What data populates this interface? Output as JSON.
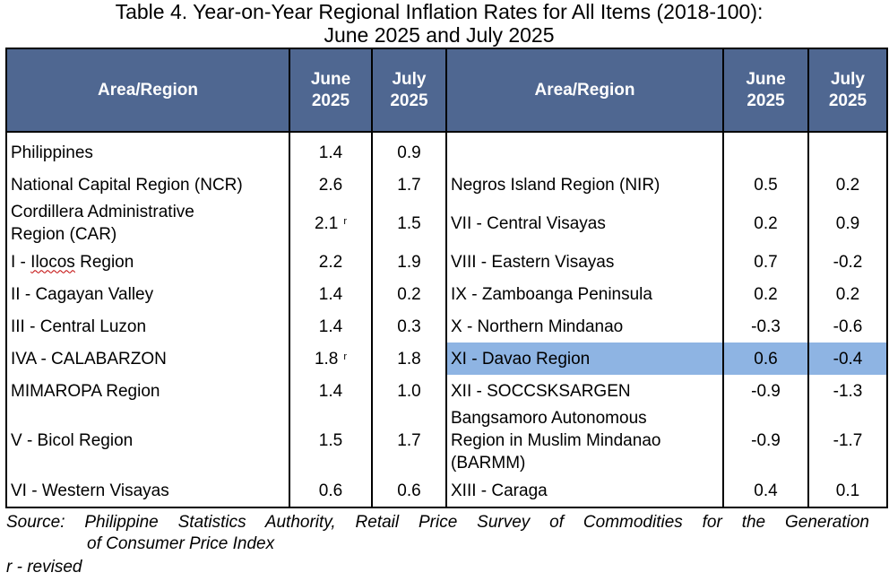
{
  "title": {
    "line1": "Table 4. Year-on-Year Regional Inflation Rates for All Items (2018-100):",
    "line2": "June 2025 and July 2025"
  },
  "headers": {
    "area": "Area/Region",
    "june_l1": "June",
    "june_l2": "2025",
    "july_l1": "July",
    "july_l2": "2025"
  },
  "left_rows": [
    {
      "area": "Philippines",
      "june": "1.4",
      "july": "0.9"
    },
    {
      "area": "National Capital Region (NCR)",
      "june": "2.6",
      "july": "1.7"
    },
    {
      "area_l1": "Cordillera Administrative",
      "area_l2": "Region (CAR)",
      "june": "2.1",
      "june_mark": "r",
      "july": "1.5"
    },
    {
      "area_prefix": "I - ",
      "area_word": "Ilocos",
      "area_suffix": " Region",
      "june": "2.2",
      "july": "1.9"
    },
    {
      "area": "II - Cagayan Valley",
      "june": "1.4",
      "july": "0.2"
    },
    {
      "area": "III - Central Luzon",
      "june": "1.4",
      "july": "0.3"
    },
    {
      "area": "IVA - CALABARZON",
      "june": "1.8",
      "june_mark": "r",
      "july": "1.8"
    },
    {
      "area": "MIMAROPA Region",
      "june": "1.4",
      "july": "1.0"
    },
    {
      "area": "V - Bicol Region",
      "june": "1.5",
      "july": "1.7"
    },
    {
      "area": "VI - Western Visayas",
      "june": "0.6",
      "july": "0.6"
    }
  ],
  "right_rows": [
    {
      "area": "",
      "june": "",
      "july": ""
    },
    {
      "area": "Negros Island Region (NIR)",
      "june": "0.5",
      "july": "0.2"
    },
    {
      "area": "VII - Central Visayas",
      "june": "0.2",
      "july": "0.9"
    },
    {
      "area": "VIII - Eastern Visayas",
      "june": "0.7",
      "july": "-0.2"
    },
    {
      "area": "IX - Zamboanga Peninsula",
      "june": "0.2",
      "july": "0.2"
    },
    {
      "area": "X - Northern Mindanao",
      "june": "-0.3",
      "july": "-0.6"
    },
    {
      "area": "XI - Davao Region",
      "june": "0.6",
      "july": "-0.4",
      "highlighted": true
    },
    {
      "area": "XII - SOCCSKSARGEN",
      "june": "-0.9",
      "july": "-1.3"
    },
    {
      "area_l1": "Bangsamoro Autonomous",
      "area_l2": "Region in Muslim Mindanao",
      "area_l3": "(BARMM)",
      "june": "-0.9",
      "july": "-1.7"
    },
    {
      "area": "XIII - Caraga",
      "june": "0.4",
      "july": "0.1"
    }
  ],
  "source": {
    "line1": "Source: Philippine Statistics Authority, Retail Price Survey of Commodities for the Generation",
    "line2": "of Consumer Price Index"
  },
  "note": "r - revised",
  "colors": {
    "header_bg": "#4f6791",
    "highlight_bg": "#8eb4e3"
  }
}
